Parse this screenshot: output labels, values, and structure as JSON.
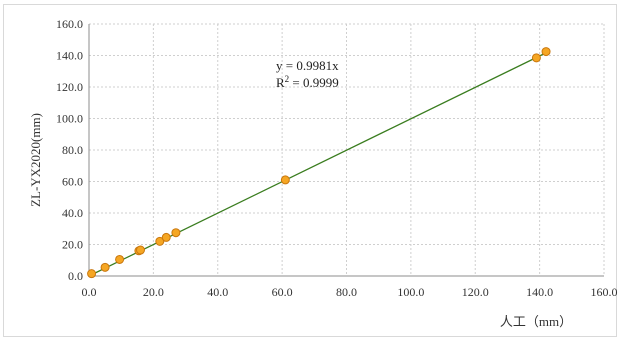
{
  "chart_data": {
    "type": "scatter",
    "xlabel": "人工（mm）",
    "ylabel": "ZL-YX2020(mm)",
    "xlim": [
      0,
      160
    ],
    "ylim": [
      0,
      160
    ],
    "x_ticks": [
      "0.0",
      "20.0",
      "40.0",
      "60.0",
      "80.0",
      "100.0",
      "120.0",
      "140.0",
      "160.0"
    ],
    "y_ticks": [
      "0.0",
      "20.0",
      "40.0",
      "60.0",
      "80.0",
      "100.0",
      "120.0",
      "140.0",
      "160.0"
    ],
    "grid": true,
    "series": [
      {
        "x": [
          0.8,
          5.0,
          9.5,
          15.5,
          16.0,
          22.0,
          24.0,
          27.0,
          61.0,
          139.0,
          142.0
        ],
        "y": [
          1.5,
          5.5,
          10.5,
          16.0,
          16.5,
          22.0,
          24.5,
          27.5,
          61.0,
          138.5,
          142.5
        ],
        "marker_color": "#f5a623",
        "marker_edge": "#c9770e"
      }
    ],
    "trendline": {
      "slope": 0.9981,
      "color": "#3a7d1f",
      "equation": "y = 0.9981x",
      "r2_prefix": "R",
      "r2_sup": "2",
      "r2_value": " = 0.9999"
    }
  }
}
